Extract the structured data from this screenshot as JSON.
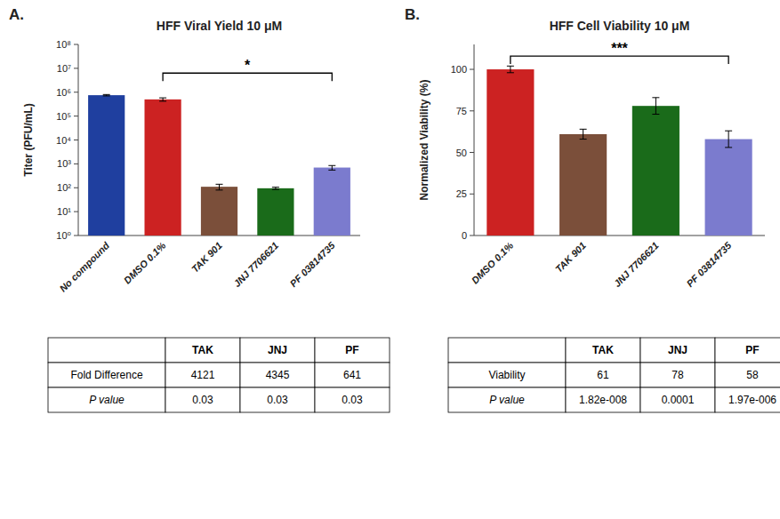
{
  "chart_data": [
    {
      "type": "bar",
      "panel_label": "A.",
      "title": "HFF Viral Yield 10 μM",
      "ylabel": "Titer (PFU/mL)",
      "categories": [
        "No compound",
        "DMSO 0.1%",
        "TAK 901",
        "JNJ 7706621",
        "PF 03814735"
      ],
      "values": [
        750000,
        500000,
        110,
        95,
        700
      ],
      "errors": [
        50000,
        80000,
        30,
        10,
        150
      ],
      "colors": [
        "#1F3F9F",
        "#CC2222",
        "#7B4F3A",
        "#1A6B1A",
        "#7B7BCE"
      ],
      "log": "y",
      "ylim": [
        1.0,
        100000000.0
      ],
      "yticks": [
        {
          "value": 1,
          "label": "10⁰"
        },
        {
          "value": 10,
          "label": "10¹"
        },
        {
          "value": 100,
          "label": "10²"
        },
        {
          "value": 1000,
          "label": "10³"
        },
        {
          "value": 10000,
          "label": "10⁴"
        },
        {
          "value": 100000,
          "label": "10⁵"
        },
        {
          "value": 1000000,
          "label": "10⁶"
        },
        {
          "value": 10000000,
          "label": "10⁷"
        },
        {
          "value": 100000000,
          "label": "10⁸"
        }
      ],
      "grid": false,
      "annotations": [
        {
          "text": "*",
          "x_from": "DMSO 0.1%",
          "x_to": "PF 03814735",
          "y": 6309573.444801933
        }
      ]
    },
    {
      "type": "bar",
      "panel_label": "B.",
      "title": "HFF Cell Viability 10 μM",
      "ylabel": "Normalized Viability (%)",
      "categories": [
        "DMSO 0.1%",
        "TAK 901",
        "JNJ 7706621",
        "PF 03814735"
      ],
      "values": [
        100,
        61,
        78,
        58
      ],
      "errors": [
        2,
        3,
        5,
        5
      ],
      "colors": [
        "#CC2222",
        "#7B4F3A",
        "#1A6B1A",
        "#7B7BCE"
      ],
      "ylim": [
        0,
        115
      ],
      "yticks": [
        0,
        25,
        50,
        75,
        100
      ],
      "grid": false,
      "annotations": [
        {
          "text": "***",
          "x_from": "DMSO 0.1%",
          "x_to": "PF 03814735",
          "y": 108
        }
      ]
    },
    {
      "type": "table",
      "headers": [
        null,
        "TAK",
        "JNJ",
        "PF"
      ],
      "rows": [
        [
          "Fold Difference",
          "4121",
          "4345",
          "641"
        ],
        [
          "P value",
          "0.03",
          "0.03",
          "0.03"
        ]
      ]
    },
    {
      "type": "table",
      "headers": [
        null,
        "TAK",
        "JNJ",
        "PF"
      ],
      "rows": [
        [
          "Viability",
          "61",
          "78",
          "58"
        ],
        [
          "P value",
          "1.82e-008",
          "0.0001",
          "1.97e-006"
        ]
      ]
    }
  ]
}
